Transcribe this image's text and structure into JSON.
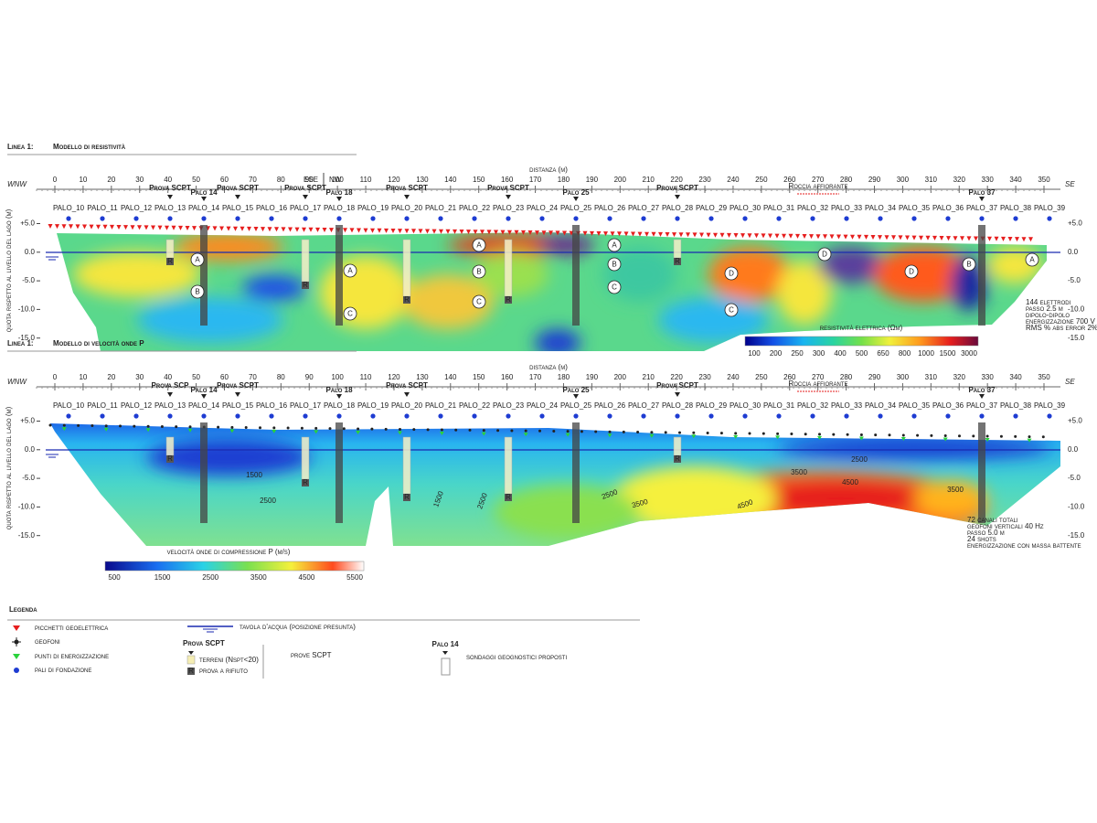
{
  "resistivity_section": {
    "title_prefix": "Linea 1:",
    "title": "Modello di resistività",
    "left_label": "WNW",
    "mid_labels": [
      "ESE",
      "NW"
    ],
    "right_label": "SE",
    "x_axis_label": "distanza (m)",
    "x_ticks": [
      0,
      10,
      20,
      30,
      40,
      50,
      60,
      70,
      80,
      90,
      100,
      110,
      120,
      130,
      140,
      150,
      160,
      170,
      180,
      190,
      200,
      210,
      220,
      230,
      240,
      250,
      260,
      270,
      280,
      290,
      300,
      310,
      320,
      330,
      340,
      350
    ],
    "y_axis_label": "quota rispetto al livello del lago (m)",
    "y_ticks": [
      "+5.0",
      "0.0",
      "-5.0",
      "-10.0",
      "-15.0"
    ],
    "piles": [
      "PALO_10",
      "PALO_11",
      "PALO_12",
      "PALO_13",
      "PALO_14",
      "PALO_15",
      "PALO_16",
      "PALO_17",
      "PALO_18",
      "PALO_19",
      "PALO_20",
      "PALO_21",
      "PALO_22",
      "PALO_23",
      "PALO_24",
      "PALO_25",
      "PALO_26",
      "PALO_27",
      "PALO_28",
      "PALO_29",
      "PALO_30",
      "PALO_31",
      "PALO_32",
      "PALO_33",
      "PALO_34",
      "PALO_35",
      "PALO_36",
      "PALO_37",
      "PALO_38",
      "PALO_39"
    ],
    "highlighted_piles": [
      "Palo 14",
      "Palo 18",
      "Palo 25",
      "Palo 37"
    ],
    "scpt_labels": [
      "Prova SCPT",
      "Prova SCPT",
      "Prova SCPT",
      "Prova SCPT",
      "Prova SCPT",
      "Prova SCPT"
    ],
    "annotation": "Roccia affiorante",
    "zones": [
      "A",
      "B",
      "A",
      "C",
      "A",
      "B",
      "C",
      "A",
      "B",
      "C",
      "D",
      "C",
      "D",
      "D",
      "B",
      "A"
    ],
    "refusal_markers": [
      "R",
      "R",
      "R",
      "R",
      "R"
    ],
    "colorbar": {
      "title": "resistività elettrica (Ωm)",
      "ticks": [
        "100",
        "200",
        "250",
        "300",
        "400",
        "500",
        "650",
        "800",
        "1000",
        "1500",
        "3000"
      ]
    },
    "notes": [
      "144 elettrodi",
      "passo 2.5 m",
      "dipolo-dipolo",
      "energizzazione 700 V",
      "RMS % abs error 2%"
    ]
  },
  "velocity_section": {
    "title_prefix": "Linea 1:",
    "title": "Modello di velocità onde P",
    "left_label": "WNW",
    "right_label": "SE",
    "x_axis_label": "distanza (m)",
    "x_ticks": [
      0,
      10,
      20,
      30,
      40,
      50,
      60,
      70,
      80,
      90,
      100,
      110,
      120,
      130,
      140,
      150,
      160,
      170,
      180,
      190,
      200,
      210,
      220,
      230,
      240,
      250,
      260,
      270,
      280,
      290,
      300,
      310,
      320,
      330,
      340,
      350
    ],
    "y_axis_label": "quota rispetto al livello del lago (m)",
    "y_ticks": [
      "+5.0",
      "0.0",
      "-5.0",
      "-10.0",
      "-15.0"
    ],
    "piles": [
      "PALO_10",
      "PALO_11",
      "PALO_12",
      "PALO_13",
      "PALO_14",
      "PALO_15",
      "PALO_16",
      "PALO_17",
      "PALO_18",
      "PALO_19",
      "PALO_20",
      "PALO_21",
      "PALO_22",
      "PALO_23",
      "PALO_24",
      "PALO_25",
      "PALO_26",
      "PALO_27",
      "PALO_28",
      "PALO_29",
      "PALO_30",
      "PALO_31",
      "PALO_32",
      "PALO_33",
      "PALO_34",
      "PALO_35",
      "PALO_36",
      "PALO_37",
      "PALO_38",
      "PALO_39"
    ],
    "highlighted_piles": [
      "Palo 14",
      "Palo 18",
      "Palo 25",
      "Palo 37"
    ],
    "scpt_labels": [
      "Prova SCP",
      "Prova SCPT",
      "Prova SCPT",
      "Prova SCPT"
    ],
    "annotation": "Roccia affiorante",
    "contour_labels": [
      "1500",
      "2500",
      "1500",
      "2500",
      "2500",
      "3500",
      "4500",
      "3500",
      "4500",
      "2500",
      "3500"
    ],
    "refusal_markers": [
      "R",
      "R",
      "R",
      "R",
      "R"
    ],
    "colorbar": {
      "title": "velocità onde di compressione P (m/s)",
      "ticks": [
        "500",
        "1500",
        "2500",
        "3500",
        "4500",
        "5500"
      ]
    },
    "notes": [
      "72 canali totali",
      "geofoni verticali 40 Hz",
      "passo 5.0 m",
      "24 shots",
      "energizzazione con massa battente"
    ]
  },
  "legend": {
    "title": "Legenda",
    "items": [
      "picchetti geoelettrica",
      "geofoni",
      "punti di energizzazione",
      "pali di fondazione"
    ],
    "water_table": "tavola d'acqua (posizione presunta)",
    "scpt_label": "Prova SCPT",
    "soil": "terreni (Nspt<20)",
    "refusal_marker": "R",
    "refusal": "prova a rifiuto",
    "scpt_caption": "prove SCPT",
    "borehole_label": "Palo 14",
    "borehole_caption": "sondaggi geognostici proposti"
  }
}
